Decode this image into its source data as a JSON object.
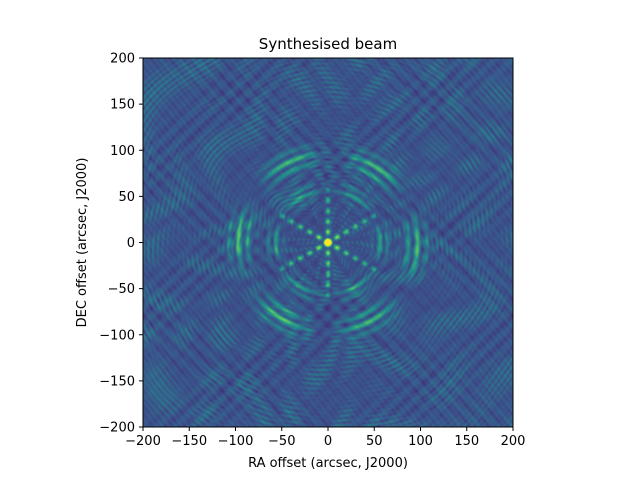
{
  "chart_data": {
    "type": "heatmap",
    "title": "Synthesised beam",
    "xlabel": "RA offset (arcsec, J2000)",
    "ylabel": "DEC offset (arcsec, J2000)",
    "xlim": [
      -200,
      200
    ],
    "ylim": [
      -200,
      200
    ],
    "xticks": [
      -200,
      -150,
      -100,
      -50,
      0,
      50,
      100,
      150,
      200
    ],
    "yticks": [
      -200,
      -150,
      -100,
      -50,
      0,
      50,
      100,
      150,
      200
    ],
    "xtick_labels": [
      "−200",
      "−150",
      "−100",
      "−50",
      "0",
      "50",
      "100",
      "150",
      "200"
    ],
    "ytick_labels": [
      "−200",
      "−150",
      "−100",
      "−50",
      "0",
      "50",
      "100",
      "150",
      "200"
    ],
    "colormap": "viridis",
    "grid": false,
    "colors": {
      "low": "#440154",
      "mid": "#21918c",
      "high": "#fde725"
    }
  }
}
